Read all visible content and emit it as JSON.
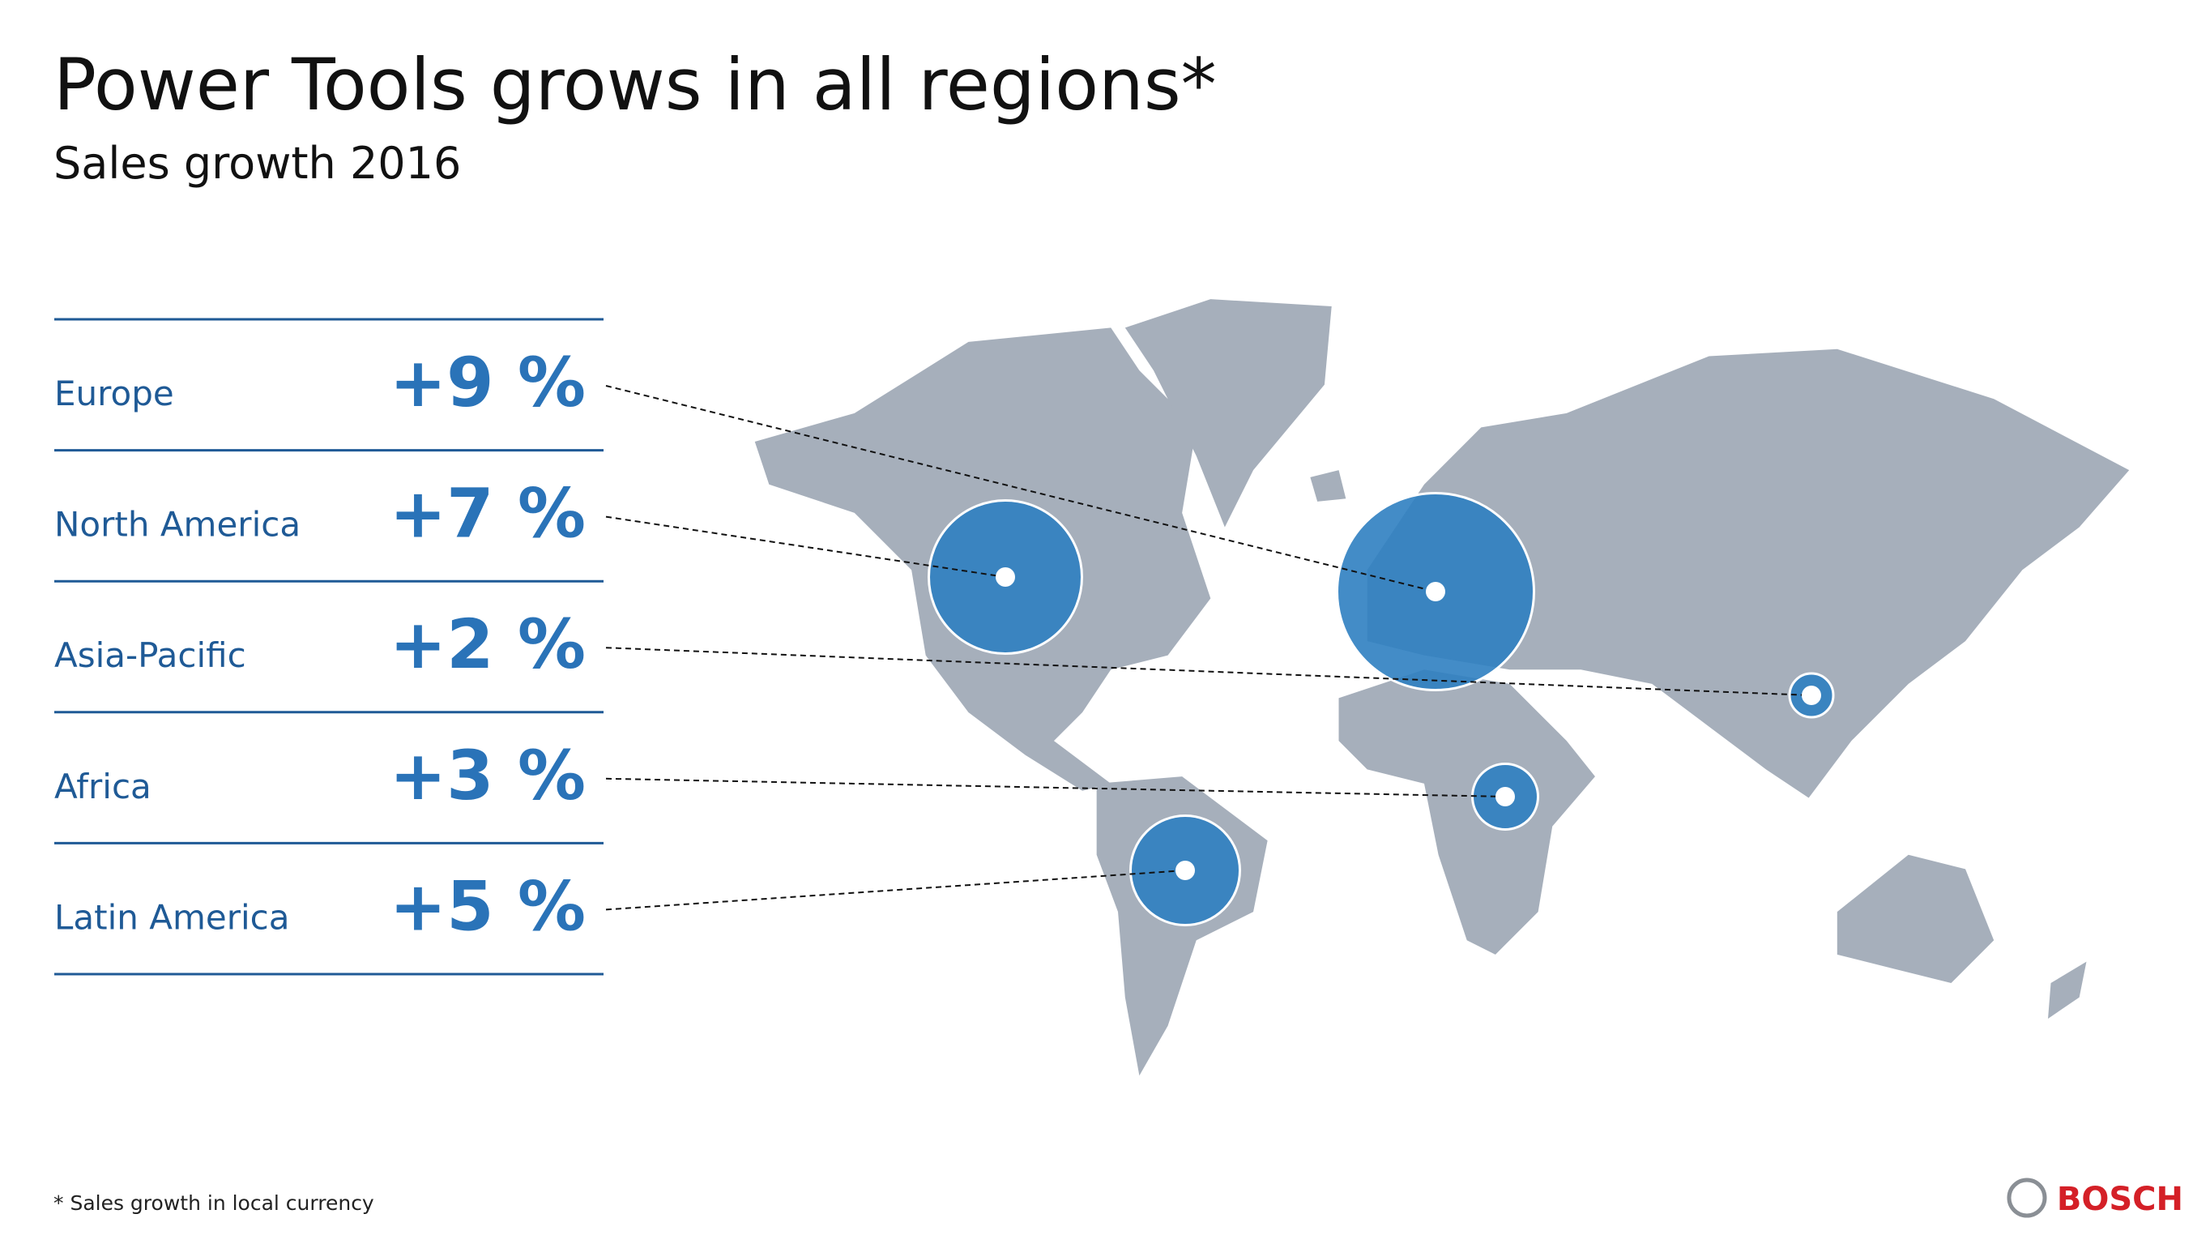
{
  "header": {
    "title": "Power Tools grows in all regions*",
    "subtitle": "Sales growth 2016"
  },
  "chart_data": {
    "type": "bubble",
    "categories": [
      "Europe",
      "North America",
      "Asia-Pacific",
      "Africa",
      "Latin America"
    ],
    "values": [
      9,
      7,
      2,
      3,
      5
    ],
    "value_labels": [
      "+9 %",
      "+7 %",
      "+2 %",
      "+3 %",
      "+5 %"
    ],
    "color": "#2f7fc1"
  },
  "footnote": "* Sales growth in local currency",
  "logo": "BOSCH"
}
